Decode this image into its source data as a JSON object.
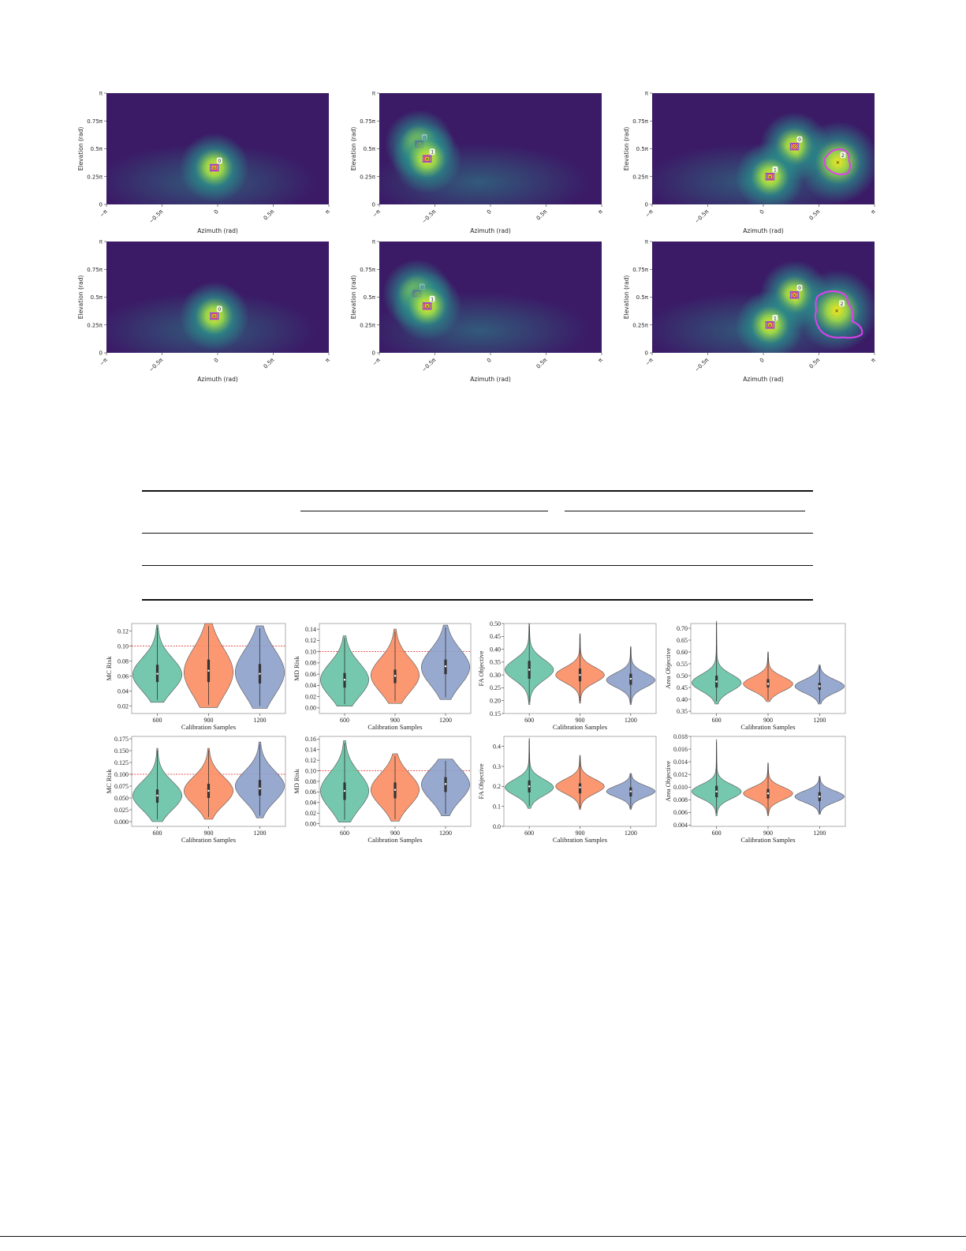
{
  "heatmaps": {
    "xlabel": "Azimuth (rad)",
    "ylabel": "Elevation (rad)",
    "xticks": [
      "−π",
      "−0.5π",
      "0",
      "0.5π",
      "π"
    ],
    "yticks": [
      "0",
      "0.25π",
      "0.5π",
      "0.75π",
      "π"
    ],
    "colors": {
      "low": "#3b1a66",
      "mid": "#2a8f8b",
      "high": "#f5e81f",
      "box_pink": "#e8367a",
      "box_purple": "#8a4fd8",
      "region_magenta": "#e040f0"
    },
    "panels": [
      {
        "row": 0,
        "col": 0,
        "sources": [
          {
            "az": -0.03,
            "el": 0.33,
            "id": "0",
            "region": "box"
          }
        ]
      },
      {
        "row": 0,
        "col": 1,
        "sources": [
          {
            "az": -0.64,
            "el": 0.54,
            "id": "0",
            "region": "box"
          },
          {
            "az": -0.57,
            "el": 0.41,
            "id": "1",
            "region": "box"
          }
        ]
      },
      {
        "row": 0,
        "col": 2,
        "sources": [
          {
            "az": 0.28,
            "el": 0.52,
            "id": "0",
            "region": "box"
          },
          {
            "az": 0.06,
            "el": 0.25,
            "id": "1",
            "region": "box"
          },
          {
            "az": 0.67,
            "el": 0.38,
            "id": "2",
            "region": "blob"
          }
        ]
      },
      {
        "row": 1,
        "col": 0,
        "sources": [
          {
            "az": -0.03,
            "el": 0.33,
            "id": "0",
            "region": "box"
          }
        ]
      },
      {
        "row": 1,
        "col": 1,
        "sources": [
          {
            "az": -0.66,
            "el": 0.53,
            "id": "0",
            "region": "box"
          },
          {
            "az": -0.57,
            "el": 0.42,
            "id": "1",
            "region": "box"
          }
        ]
      },
      {
        "row": 1,
        "col": 2,
        "sources": [
          {
            "az": 0.28,
            "el": 0.52,
            "id": "0",
            "region": "box"
          },
          {
            "az": 0.06,
            "el": 0.25,
            "id": "1",
            "region": "box"
          },
          {
            "az": 0.66,
            "el": 0.38,
            "id": "2",
            "region": "blob-large"
          }
        ]
      }
    ]
  },
  "chart_data": [
    {
      "type": "violin",
      "xlabel": "Calibration Samples",
      "ylabel": "MC Risk",
      "categories": [
        "600",
        "900",
        "1200"
      ],
      "ylim": [
        0.01,
        0.13
      ],
      "yticks": [
        0.02,
        0.04,
        0.06,
        0.08,
        0.1,
        0.12
      ],
      "yticklabels": [
        "0.02",
        "0.04",
        "0.06",
        "0.08",
        "0.10",
        "0.12"
      ],
      "threshold": 0.1,
      "series": [
        {
          "category": "600",
          "min": 0.025,
          "max": 0.128,
          "median": 0.063,
          "q1": 0.052,
          "q3": 0.075,
          "mode": 0.062,
          "spread": 0.022
        },
        {
          "category": "900",
          "min": 0.018,
          "max": 0.13,
          "median": 0.067,
          "q1": 0.052,
          "q3": 0.082,
          "mode": 0.065,
          "spread": 0.032
        },
        {
          "category": "1200",
          "min": 0.017,
          "max": 0.127,
          "median": 0.063,
          "q1": 0.05,
          "q3": 0.076,
          "mode": 0.065,
          "spread": 0.03
        }
      ]
    },
    {
      "type": "violin",
      "xlabel": "Calibration Samples",
      "ylabel": "MD Risk",
      "categories": [
        "600",
        "900",
        "1200"
      ],
      "ylim": [
        -0.01,
        0.15
      ],
      "yticks": [
        0.0,
        0.02,
        0.04,
        0.06,
        0.08,
        0.1,
        0.12,
        0.14
      ],
      "yticklabels": [
        "0.00",
        "0.02",
        "0.04",
        "0.06",
        "0.08",
        "0.10",
        "0.12",
        "0.14"
      ],
      "threshold": 0.1,
      "series": [
        {
          "category": "600",
          "min": 0.003,
          "max": 0.128,
          "median": 0.05,
          "q1": 0.036,
          "q3": 0.062,
          "mode": 0.05,
          "spread": 0.03
        },
        {
          "category": "900",
          "min": 0.008,
          "max": 0.14,
          "median": 0.057,
          "q1": 0.044,
          "q3": 0.068,
          "mode": 0.058,
          "spread": 0.03
        },
        {
          "category": "1200",
          "min": 0.015,
          "max": 0.147,
          "median": 0.074,
          "q1": 0.06,
          "q3": 0.086,
          "mode": 0.072,
          "spread": 0.032
        }
      ]
    },
    {
      "type": "violin",
      "xlabel": "Calibration Samples",
      "ylabel": "FA Objective",
      "categories": [
        "600",
        "900",
        "1200"
      ],
      "ylim": [
        0.15,
        0.5
      ],
      "yticks": [
        0.15,
        0.2,
        0.25,
        0.3,
        0.35,
        0.4,
        0.45,
        0.5
      ],
      "yticklabels": [
        "0.15",
        "0.20",
        "0.25",
        "0.30",
        "0.35",
        "0.40",
        "0.45",
        "0.50"
      ],
      "threshold": null,
      "series": [
        {
          "category": "600",
          "min": 0.185,
          "max": 0.5,
          "median": 0.32,
          "q1": 0.285,
          "q3": 0.355,
          "mode": 0.32,
          "spread": 0.04
        },
        {
          "category": "900",
          "min": 0.19,
          "max": 0.46,
          "median": 0.3,
          "q1": 0.275,
          "q3": 0.325,
          "mode": 0.3,
          "spread": 0.03
        },
        {
          "category": "1200",
          "min": 0.185,
          "max": 0.41,
          "median": 0.285,
          "q1": 0.262,
          "q3": 0.305,
          "mode": 0.28,
          "spread": 0.028
        }
      ]
    },
    {
      "type": "violin",
      "xlabel": "Calibration Samples",
      "ylabel": "Area Objective",
      "categories": [
        "600",
        "900",
        "1200"
      ],
      "ylim": [
        0.34,
        0.72
      ],
      "yticks": [
        0.35,
        0.4,
        0.45,
        0.5,
        0.55,
        0.6,
        0.65,
        0.7
      ],
      "yticklabels": [
        "0.35",
        "0.40",
        "0.45",
        "0.50",
        "0.55",
        "0.60",
        "0.65",
        "0.70"
      ],
      "threshold": null,
      "series": [
        {
          "category": "600",
          "min": 0.38,
          "max": 0.73,
          "median": 0.475,
          "q1": 0.45,
          "q3": 0.5,
          "mode": 0.47,
          "spread": 0.035
        },
        {
          "category": "900",
          "min": 0.39,
          "max": 0.6,
          "median": 0.465,
          "q1": 0.45,
          "q3": 0.485,
          "mode": 0.465,
          "spread": 0.03
        },
        {
          "category": "1200",
          "min": 0.38,
          "max": 0.545,
          "median": 0.455,
          "q1": 0.44,
          "q3": 0.47,
          "mode": 0.455,
          "spread": 0.028
        }
      ]
    },
    {
      "type": "violin",
      "xlabel": "Calibration Samples",
      "ylabel": "MC Risk",
      "categories": [
        "600",
        "900",
        "1200"
      ],
      "ylim": [
        -0.01,
        0.18
      ],
      "yticks": [
        0.0,
        0.025,
        0.05,
        0.075,
        0.1,
        0.125,
        0.15,
        0.175
      ],
      "yticklabels": [
        "0.000",
        "0.025",
        "0.050",
        "0.075",
        "0.100",
        "0.125",
        "0.150",
        "0.175"
      ],
      "threshold": 0.1,
      "series": [
        {
          "category": "600",
          "min": 0.0,
          "max": 0.155,
          "median": 0.055,
          "q1": 0.04,
          "q3": 0.068,
          "mode": 0.055,
          "spread": 0.03
        },
        {
          "category": "900",
          "min": 0.005,
          "max": 0.155,
          "median": 0.065,
          "q1": 0.05,
          "q3": 0.08,
          "mode": 0.065,
          "spread": 0.03
        },
        {
          "category": "1200",
          "min": 0.008,
          "max": 0.168,
          "median": 0.07,
          "q1": 0.055,
          "q3": 0.088,
          "mode": 0.075,
          "spread": 0.032
        }
      ]
    },
    {
      "type": "violin",
      "xlabel": "Calibration Samples",
      "ylabel": "MD Risk",
      "categories": [
        "600",
        "900",
        "1200"
      ],
      "ylim": [
        -0.005,
        0.165
      ],
      "yticks": [
        0.0,
        0.02,
        0.04,
        0.06,
        0.08,
        0.1,
        0.12,
        0.14,
        0.16
      ],
      "yticklabels": [
        "0.00",
        "0.02",
        "0.04",
        "0.06",
        "0.08",
        "0.10",
        "0.12",
        "0.14",
        "0.16"
      ],
      "threshold": 0.1,
      "series": [
        {
          "category": "600",
          "min": 0.003,
          "max": 0.157,
          "median": 0.062,
          "q1": 0.045,
          "q3": 0.078,
          "mode": 0.062,
          "spread": 0.034
        },
        {
          "category": "900",
          "min": 0.005,
          "max": 0.132,
          "median": 0.064,
          "q1": 0.048,
          "q3": 0.078,
          "mode": 0.064,
          "spread": 0.03
        },
        {
          "category": "1200",
          "min": 0.015,
          "max": 0.122,
          "median": 0.075,
          "q1": 0.06,
          "q3": 0.088,
          "mode": 0.074,
          "spread": 0.03
        }
      ]
    },
    {
      "type": "violin",
      "xlabel": "Calibration Samples",
      "ylabel": "FA Objective",
      "categories": [
        "600",
        "900",
        "1200"
      ],
      "ylim": [
        0.0,
        0.45
      ],
      "yticks": [
        0.0,
        0.1,
        0.2,
        0.3,
        0.4
      ],
      "yticklabels": [
        "0.0",
        "0.1",
        "0.2",
        "0.3",
        "0.4"
      ],
      "threshold": null,
      "series": [
        {
          "category": "600",
          "min": 0.09,
          "max": 0.44,
          "median": 0.2,
          "q1": 0.17,
          "q3": 0.23,
          "mode": 0.195,
          "spread": 0.04
        },
        {
          "category": "900",
          "min": 0.085,
          "max": 0.355,
          "median": 0.195,
          "q1": 0.165,
          "q3": 0.215,
          "mode": 0.2,
          "spread": 0.036
        },
        {
          "category": "1200",
          "min": 0.085,
          "max": 0.265,
          "median": 0.175,
          "q1": 0.15,
          "q3": 0.195,
          "mode": 0.175,
          "spread": 0.028
        }
      ]
    },
    {
      "type": "violin",
      "xlabel": "Calibration Samples",
      "ylabel": "Area Objective",
      "categories": [
        "600",
        "900",
        "1200"
      ],
      "ylim": [
        0.0038,
        0.018
      ],
      "yticks": [
        0.004,
        0.006,
        0.008,
        0.01,
        0.012,
        0.014,
        0.016,
        0.018
      ],
      "yticklabels": [
        "0.004",
        "0.006",
        "0.008",
        "0.010",
        "0.012",
        "0.014",
        "0.016",
        "0.018"
      ],
      "threshold": null,
      "series": [
        {
          "category": "600",
          "min": 0.0055,
          "max": 0.0175,
          "median": 0.0093,
          "q1": 0.0084,
          "q3": 0.0102,
          "mode": 0.0093,
          "spread": 0.0011
        },
        {
          "category": "900",
          "min": 0.0055,
          "max": 0.0138,
          "median": 0.009,
          "q1": 0.0082,
          "q3": 0.0097,
          "mode": 0.009,
          "spread": 0.001
        },
        {
          "category": "1200",
          "min": 0.0057,
          "max": 0.0117,
          "median": 0.0085,
          "q1": 0.0078,
          "q3": 0.0092,
          "mode": 0.0085,
          "spread": 0.0009
        }
      ]
    }
  ],
  "violin_colors": [
    "#66c2a5",
    "#fc8d62",
    "#8da0cb"
  ],
  "threshold_color": "#e31a1c"
}
